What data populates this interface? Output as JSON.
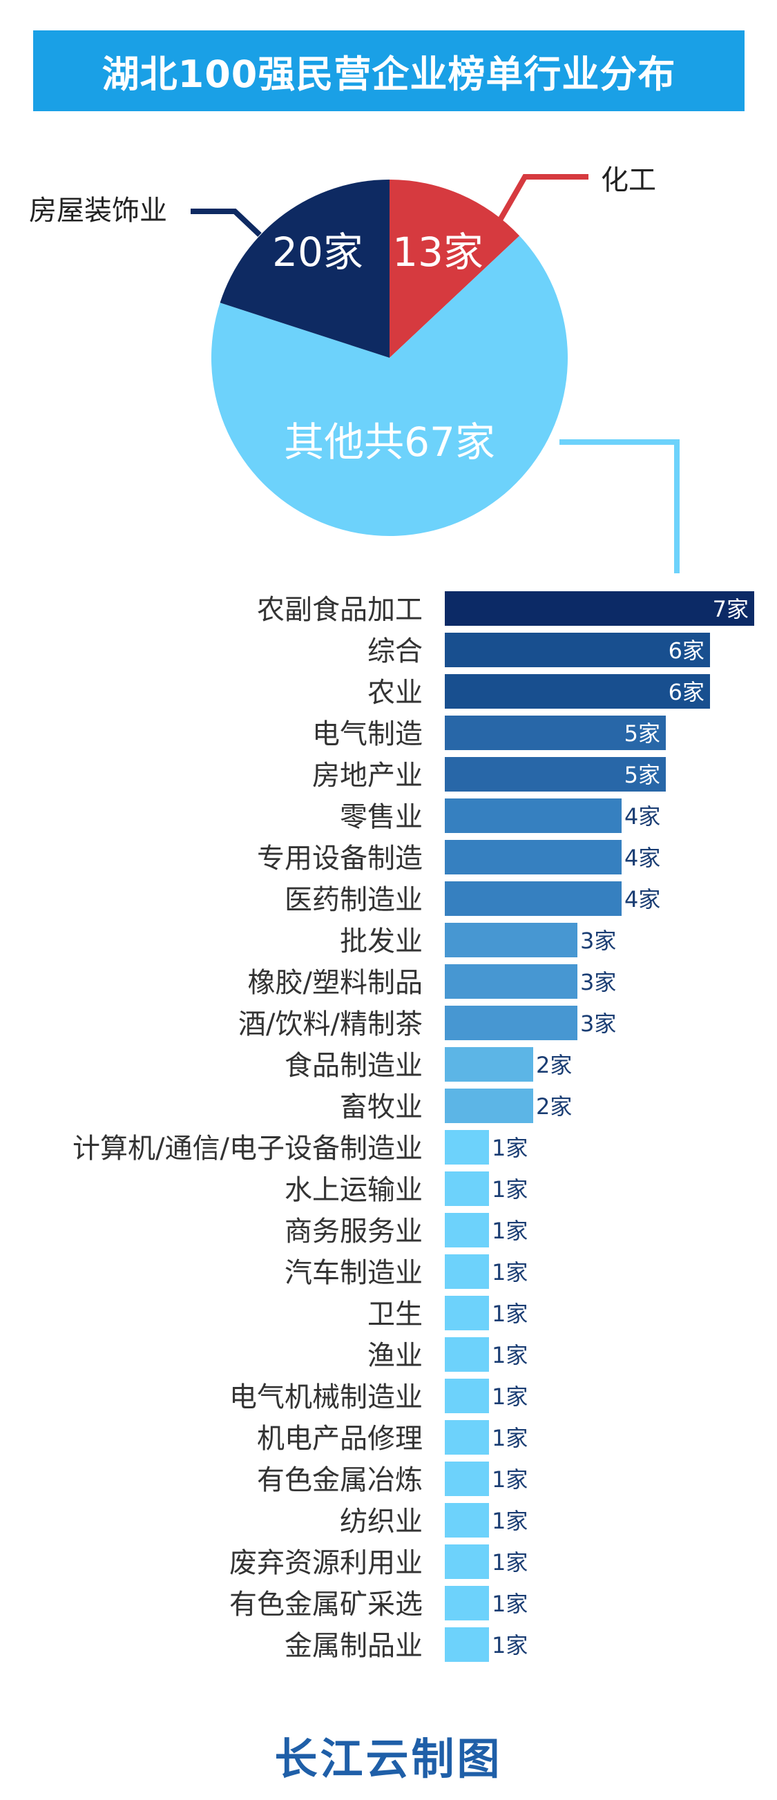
{
  "title": "湖北100强民营企业榜单行业分布",
  "footer": "长江云制图",
  "colors": {
    "banner": "#1aa0e6",
    "pie_navy": "#0e2a62",
    "pie_red": "#d63a3f",
    "pie_light": "#6dd2fb"
  },
  "chart_data": [
    {
      "type": "pie",
      "slices": [
        {
          "label": "化工",
          "value": 13,
          "text": "13家",
          "color": "#d63a3f"
        },
        {
          "label": "",
          "value": 67,
          "text": "其他共67家",
          "color": "#6dd2fb"
        },
        {
          "label": "房屋装饰业",
          "value": 20,
          "text": "20家",
          "color": "#0e2a62"
        }
      ]
    },
    {
      "type": "bar",
      "orientation": "horizontal",
      "unit": "家",
      "categories": [
        "农副食品加工",
        "综合",
        "农业",
        "电气制造",
        "房地产业",
        "零售业",
        "专用设备制造",
        "医药制造业",
        "批发业",
        "橡胶/塑料制品",
        "酒/饮料/精制茶",
        "食品制造业",
        "畜牧业",
        "计算机/通信/电子设备制造业",
        "水上运输业",
        "商务服务业",
        "汽车制造业",
        "卫生",
        "渔业",
        "电气机械制造业",
        "机电产品修理",
        "有色金属冶炼",
        "纺织业",
        "废弃资源利用业",
        "有色金属矿采选",
        "金属制品业"
      ],
      "values": [
        7,
        6,
        6,
        5,
        5,
        4,
        4,
        4,
        3,
        3,
        3,
        2,
        2,
        1,
        1,
        1,
        1,
        1,
        1,
        1,
        1,
        1,
        1,
        1,
        1,
        1
      ],
      "value_labels": [
        "7家",
        "6家",
        "6家",
        "5家",
        "5家",
        "4家",
        "4家",
        "4家",
        "3家",
        "3家",
        "3家",
        "2家",
        "2家",
        "1家",
        "1家",
        "1家",
        "1家",
        "1家",
        "1家",
        "1家",
        "1家",
        "1家",
        "1家",
        "1家",
        "1家",
        "1家"
      ],
      "colors_by_value": {
        "7": "#0c2a66",
        "6": "#184f8f",
        "5": "#2867a8",
        "4": "#3680c0",
        "3": "#4797d2",
        "2": "#5cb5e6",
        "1": "#6dd2fb"
      }
    }
  ]
}
